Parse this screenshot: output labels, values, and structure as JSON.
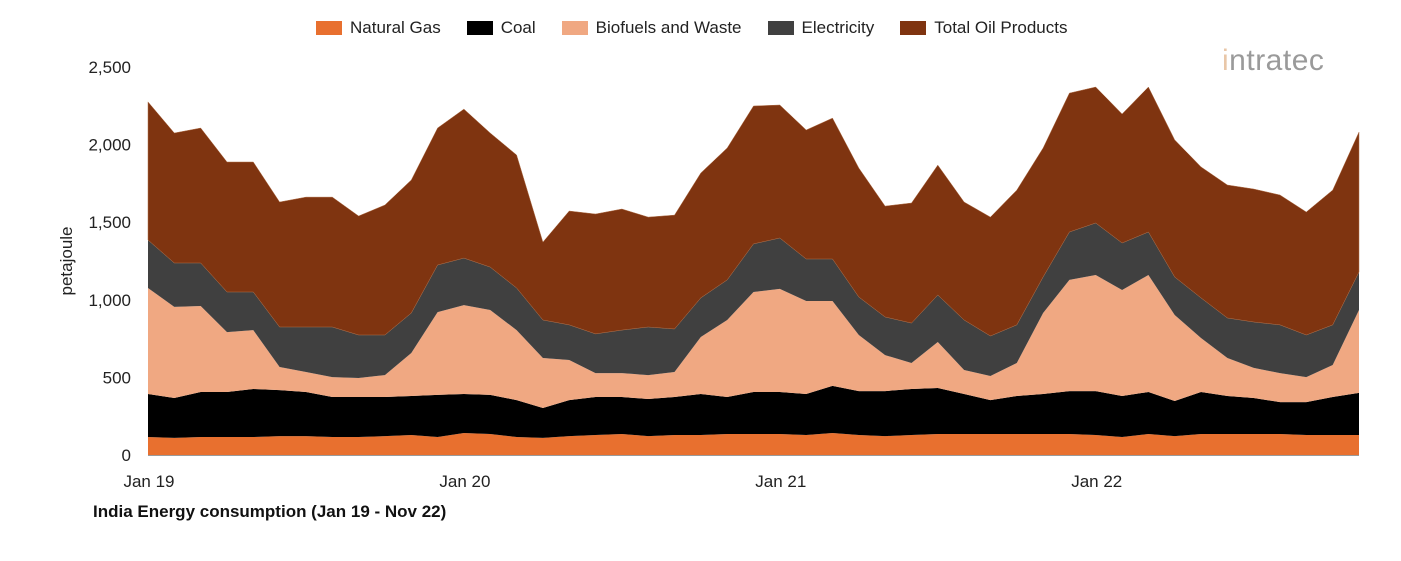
{
  "logo": {
    "text": "intratec"
  },
  "chart_data": {
    "type": "area",
    "stacked": true,
    "title": "India Energy consumption (Jan 19 - Nov 22)",
    "xlabel": "",
    "ylabel": "petajoule",
    "ylim": [
      0,
      2500
    ],
    "yticks": [
      "0",
      "500",
      "1,000",
      "1,500",
      "2,000",
      "2,500"
    ],
    "ytick_values": [
      0,
      500,
      1000,
      1500,
      2000,
      2500
    ],
    "xticks": [
      "Jan 19",
      "Jan 20",
      "Jan 21",
      "Jan 22"
    ],
    "x_start": "Jan 19",
    "x_end": "Nov 22",
    "frequency": "monthly",
    "grid": false,
    "legend_position": "top",
    "series": [
      {
        "name": "Natural Gas",
        "color": "#E8702F",
        "values": [
          116,
          110,
          116,
          116,
          116,
          122,
          122,
          116,
          116,
          122,
          129,
          116,
          142,
          135,
          116,
          110,
          122,
          129,
          135,
          122,
          129,
          129,
          135,
          135,
          135,
          129,
          142,
          129,
          122,
          129,
          135,
          135,
          135,
          135,
          135,
          135,
          129,
          116,
          135,
          122,
          135,
          135,
          135,
          135,
          129,
          129,
          129
        ]
      },
      {
        "name": "Coal",
        "color": "#000000",
        "values": [
          277,
          257,
          290,
          290,
          309,
          296,
          284,
          258,
          258,
          252,
          251,
          271,
          251,
          252,
          238,
          193,
          232,
          245,
          239,
          239,
          245,
          264,
          239,
          271,
          271,
          264,
          303,
          283,
          290,
          296,
          297,
          258,
          219,
          245,
          258,
          277,
          283,
          264,
          271,
          226,
          271,
          245,
          232,
          206,
          212,
          245,
          271
        ]
      },
      {
        "name": "Biofuels and Waste",
        "color": "#F0A882",
        "values": [
          683,
          587,
          554,
          386,
          380,
          149,
          129,
          128,
          122,
          141,
          277,
          534,
          573,
          547,
          451,
          322,
          258,
          154,
          154,
          154,
          161,
          367,
          496,
          644,
          664,
          599,
          547,
          361,
          232,
          168,
          296,
          155,
          155,
          213,
          522,
          716,
          748,
          683,
          754,
          554,
          348,
          245,
          194,
          187,
          161,
          206,
          534
        ]
      },
      {
        "name": "Electricity",
        "color": "#404040",
        "values": [
          309,
          283,
          277,
          258,
          245,
          258,
          290,
          323,
          277,
          258,
          258,
          303,
          303,
          277,
          271,
          245,
          226,
          252,
          277,
          310,
          277,
          252,
          258,
          310,
          328,
          271,
          271,
          245,
          245,
          257,
          303,
          322,
          258,
          245,
          232,
          309,
          335,
          303,
          277,
          245,
          258,
          258,
          296,
          310,
          271,
          258,
          245
        ]
      },
      {
        "name": "Total Oil Products",
        "color": "#7F3410",
        "values": [
          890,
          838,
          870,
          838,
          838,
          805,
          837,
          837,
          767,
          838,
          857,
          883,
          960,
          864,
          857,
          502,
          734,
          773,
          780,
          708,
          734,
          805,
          850,
          889,
          857,
          831,
          908,
          831,
          715,
          774,
          837,
          760,
          766,
          869,
          831,
          895,
          876,
          831,
          934,
          883,
          844,
          857,
          857,
          837,
          793,
          869,
          902
        ]
      }
    ]
  }
}
